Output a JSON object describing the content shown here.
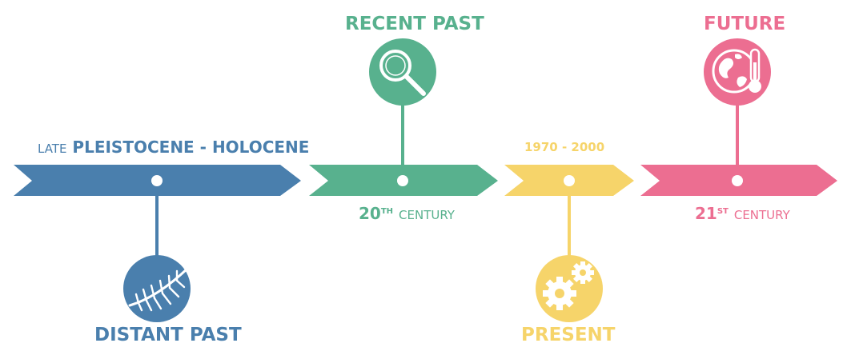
{
  "colors": {
    "distant": "#4a7fad",
    "recent": "#58b18e",
    "present": "#f6d46a",
    "future": "#ec6e91"
  },
  "segments": {
    "distant": {
      "period_prefix": "LATE",
      "period_main": "PLEISTOCENE - HOLOCENE",
      "title": "DISTANT PAST",
      "icon": "fern-leaf-icon"
    },
    "recent": {
      "title": "RECENT PAST",
      "period_num": "20",
      "period_sup": "TH",
      "period_word": "CENTURY",
      "icon": "magnifying-glass-icon"
    },
    "present": {
      "period": "1970 - 2000",
      "title": "PRESENT",
      "icon": "gears-icon"
    },
    "future": {
      "title": "FUTURE",
      "period_num": "21",
      "period_sup": "ST",
      "period_word": "CENTURY",
      "icon": "globe-thermometer-icon"
    }
  }
}
